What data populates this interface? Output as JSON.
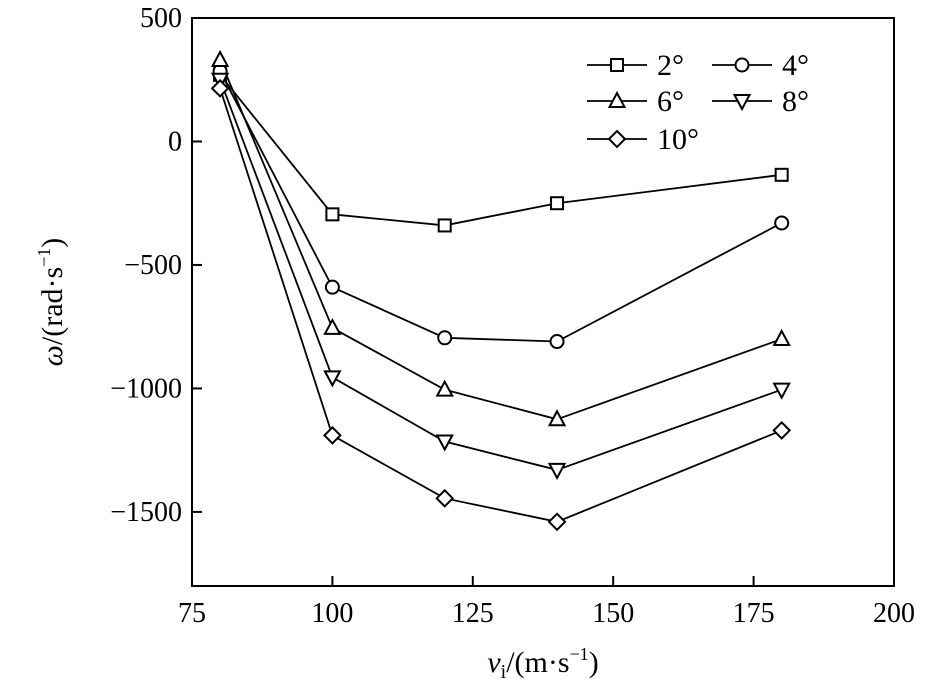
{
  "chart_data": {
    "type": "line",
    "title": "",
    "xlabel": {
      "main": "v",
      "sub": "i",
      "rest": "/(m·s",
      "sup": "−1",
      "close": ")"
    },
    "ylabel": {
      "main": "ω",
      "rest": "/(rad·s",
      "sup": "−1",
      "close": ")"
    },
    "xlim": [
      75,
      200
    ],
    "ylim": [
      -1800,
      500
    ],
    "xticks": [
      75,
      100,
      125,
      150,
      175,
      200
    ],
    "xtick_labels": [
      "75",
      "100",
      "125",
      "150",
      "175",
      "200"
    ],
    "yticks": [
      500,
      0,
      -500,
      -1000,
      -1500
    ],
    "ytick_labels": [
      "500",
      "0",
      "−500",
      "−1000",
      "−1500"
    ],
    "x": [
      80,
      100,
      120,
      140,
      180
    ],
    "series": [
      {
        "name": "2°",
        "marker": "square",
        "values": [
          270,
          -295,
          -340,
          -250,
          -135
        ]
      },
      {
        "name": "4°",
        "marker": "circle",
        "values": [
          285,
          -590,
          -795,
          -810,
          -330
        ]
      },
      {
        "name": "6°",
        "marker": "triangle-up",
        "values": [
          330,
          -755,
          -1005,
          -1125,
          -800
        ]
      },
      {
        "name": "8°",
        "marker": "triangle-down",
        "values": [
          250,
          -955,
          -1215,
          -1330,
          -1005
        ]
      },
      {
        "name": "10°",
        "marker": "diamond",
        "values": [
          215,
          -1190,
          -1445,
          -1540,
          -1170
        ]
      }
    ],
    "grid": false,
    "legend_position": "top-right",
    "colors": {
      "line": "#000000",
      "marker_fill": "#ffffff",
      "background": "#ffffff"
    }
  }
}
